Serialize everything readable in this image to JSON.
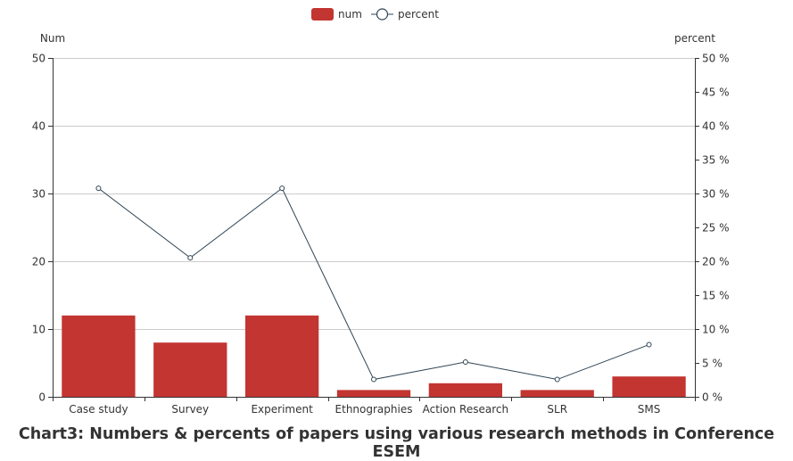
{
  "caption": "Chart3: Numbers & percents of papers using various research methods in Conference ESEM",
  "chart_data": {
    "type": "bar",
    "title": "Chart3: Numbers & percents of papers using various research methods in Conference ESEM",
    "categories": [
      "Case study",
      "Survey",
      "Experiment",
      "Ethnographies",
      "Action Research",
      "SLR",
      "SMS"
    ],
    "series": [
      {
        "name": "num",
        "type": "bar",
        "axis": "left",
        "color": "#c23531",
        "values": [
          12,
          8,
          12,
          1,
          2,
          1,
          3
        ]
      },
      {
        "name": "percent",
        "type": "line",
        "axis": "right",
        "color": "#2f4554",
        "values": [
          30.77,
          20.51,
          30.77,
          2.56,
          5.13,
          2.56,
          7.69
        ]
      }
    ],
    "y_left": {
      "label": "Num",
      "ylim": [
        0,
        50
      ],
      "ticks": [
        "0",
        "10",
        "20",
        "30",
        "40",
        "50"
      ]
    },
    "y_right": {
      "label": "percent",
      "ylim": [
        0,
        50
      ],
      "ticks": [
        "0 %",
        "5 %",
        "10 %",
        "15 %",
        "20 %",
        "25 %",
        "30 %",
        "35 %",
        "40 %",
        "45 %",
        "50 %"
      ]
    },
    "legend_position": "top-center",
    "grid": "horizontal"
  }
}
